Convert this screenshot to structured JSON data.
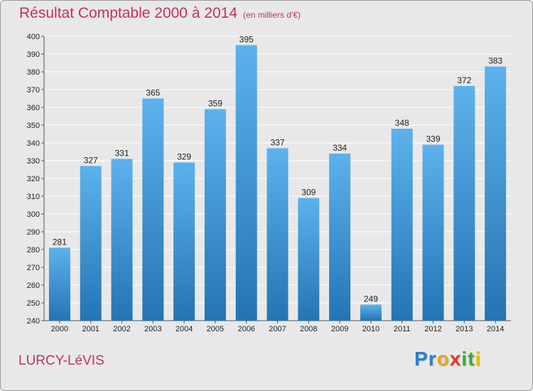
{
  "header": {
    "title": "Résultat Comptable 2000 à 2014",
    "subtitle": "(en milliers d'€)"
  },
  "footer": {
    "commune": "LURCY-LéVIS",
    "brand_letters": [
      "P",
      "r",
      "o",
      "x",
      "i",
      "t",
      "i"
    ],
    "brand_colors": [
      "#2a7fd0",
      "#2a7fd0",
      "#f0a020",
      "#e03a2a",
      "#3aaa3a",
      "#3aaa3a",
      "#e8c000"
    ]
  },
  "colors": {
    "title": "#c0306a",
    "bar_top": "#5cb2ec",
    "bar_bottom": "#2474b4",
    "grid": "#ffffff",
    "plot_bg": "#e8e8e8"
  },
  "chart_data": {
    "type": "bar",
    "title": "Résultat Comptable 2000 à 2014",
    "subtitle": "(en milliers d'€)",
    "xlabel": "",
    "ylabel": "",
    "categories": [
      "2000",
      "2001",
      "2002",
      "2003",
      "2004",
      "2005",
      "2006",
      "2007",
      "2008",
      "2009",
      "2010",
      "2011",
      "2012",
      "2013",
      "2014"
    ],
    "values": [
      281,
      327,
      331,
      365,
      329,
      359,
      395,
      337,
      309,
      334,
      249,
      348,
      339,
      372,
      383
    ],
    "ylim": [
      240,
      400
    ],
    "yticks": [
      240,
      250,
      260,
      270,
      280,
      290,
      300,
      310,
      320,
      330,
      340,
      350,
      360,
      370,
      380,
      390,
      400
    ],
    "grid": true,
    "legend": "none"
  }
}
